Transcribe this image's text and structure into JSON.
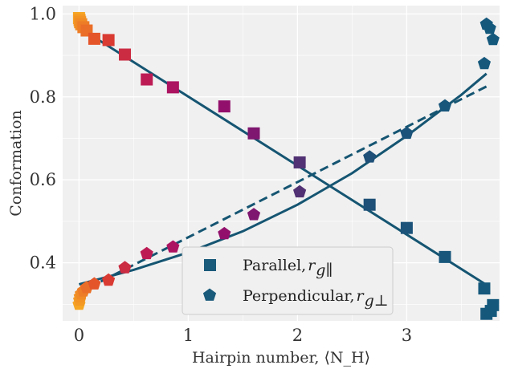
{
  "chart_data": {
    "type": "scatter",
    "xlabel": "Hairpin number, ⟨N_H⟩",
    "ylabel": "Conformation",
    "xlim": [
      -0.15,
      3.85
    ],
    "ylim": [
      0.26,
      1.02
    ],
    "xticks": [
      0,
      1,
      2,
      3
    ],
    "yticks": [
      0.4,
      0.6,
      0.8,
      1.0
    ],
    "xtick_labels": [
      "0",
      "1",
      "2",
      "3"
    ],
    "ytick_labels": [
      "0.4",
      "0.6",
      "0.8",
      "1.0"
    ],
    "grid": true,
    "legend_position": "bottom-center",
    "colors": {
      "background": "#f0f0f0",
      "grid": "#ffffff",
      "fit_line": "#155572",
      "marker_gradient": [
        "#f6a623",
        "#e0422a",
        "#b5145c",
        "#8a0f6e",
        "#1f4f78",
        "#14597c"
      ]
    },
    "series": [
      {
        "name": "Parallel, r_g∥",
        "legend_label": "Parallel, ",
        "legend_sub": "r",
        "legend_subsub": "g∥",
        "marker": "square",
        "points": [
          {
            "x": 0.0,
            "y": 0.99
          },
          {
            "x": 0.005,
            "y": 0.985
          },
          {
            "x": 0.01,
            "y": 0.98
          },
          {
            "x": 0.02,
            "y": 0.975
          },
          {
            "x": 0.04,
            "y": 0.968
          },
          {
            "x": 0.07,
            "y": 0.96
          },
          {
            "x": 0.14,
            "y": 0.94
          },
          {
            "x": 0.27,
            "y": 0.937
          },
          {
            "x": 0.42,
            "y": 0.902
          },
          {
            "x": 0.62,
            "y": 0.842
          },
          {
            "x": 0.86,
            "y": 0.823
          },
          {
            "x": 1.33,
            "y": 0.777
          },
          {
            "x": 1.6,
            "y": 0.712
          },
          {
            "x": 2.02,
            "y": 0.642
          },
          {
            "x": 2.66,
            "y": 0.54
          },
          {
            "x": 3.0,
            "y": 0.484
          },
          {
            "x": 3.35,
            "y": 0.414
          },
          {
            "x": 3.71,
            "y": 0.338
          },
          {
            "x": 3.73,
            "y": 0.277
          },
          {
            "x": 3.77,
            "y": 0.284
          },
          {
            "x": 3.79,
            "y": 0.298
          }
        ],
        "fit": [
          {
            "x": 0.0,
            "y": 0.967
          },
          {
            "x": 3.71,
            "y": 0.35
          }
        ],
        "fit_style": "solid"
      },
      {
        "name": "Perpendicular, r_g⊥",
        "legend_label": "Perpendicular, ",
        "legend_sub": "r",
        "legend_subsub": "g⊥",
        "marker": "pentagon",
        "points": [
          {
            "x": 0.0,
            "y": 0.3
          },
          {
            "x": 0.005,
            "y": 0.31
          },
          {
            "x": 0.01,
            "y": 0.318
          },
          {
            "x": 0.02,
            "y": 0.325
          },
          {
            "x": 0.04,
            "y": 0.332
          },
          {
            "x": 0.07,
            "y": 0.34
          },
          {
            "x": 0.14,
            "y": 0.349
          },
          {
            "x": 0.27,
            "y": 0.358
          },
          {
            "x": 0.42,
            "y": 0.388
          },
          {
            "x": 0.62,
            "y": 0.422
          },
          {
            "x": 0.86,
            "y": 0.438
          },
          {
            "x": 1.33,
            "y": 0.47
          },
          {
            "x": 1.6,
            "y": 0.516
          },
          {
            "x": 2.02,
            "y": 0.571
          },
          {
            "x": 2.66,
            "y": 0.655
          },
          {
            "x": 3.0,
            "y": 0.712
          },
          {
            "x": 3.35,
            "y": 0.778
          },
          {
            "x": 3.71,
            "y": 0.88
          },
          {
            "x": 3.73,
            "y": 0.975
          },
          {
            "x": 3.76,
            "y": 0.965
          },
          {
            "x": 3.79,
            "y": 0.938
          }
        ],
        "fit": [
          {
            "x": 0.0,
            "y": 0.348
          },
          {
            "x": 0.5,
            "y": 0.383
          },
          {
            "x": 1.0,
            "y": 0.425
          },
          {
            "x": 1.5,
            "y": 0.476
          },
          {
            "x": 2.0,
            "y": 0.54
          },
          {
            "x": 2.5,
            "y": 0.616
          },
          {
            "x": 3.0,
            "y": 0.706
          },
          {
            "x": 3.5,
            "y": 0.805
          },
          {
            "x": 3.73,
            "y": 0.856
          }
        ],
        "fit_style": "solid",
        "fit2": [
          {
            "x": 0.2,
            "y": 0.355
          },
          {
            "x": 3.73,
            "y": 0.825
          }
        ],
        "fit2_style": "dashed"
      }
    ]
  }
}
